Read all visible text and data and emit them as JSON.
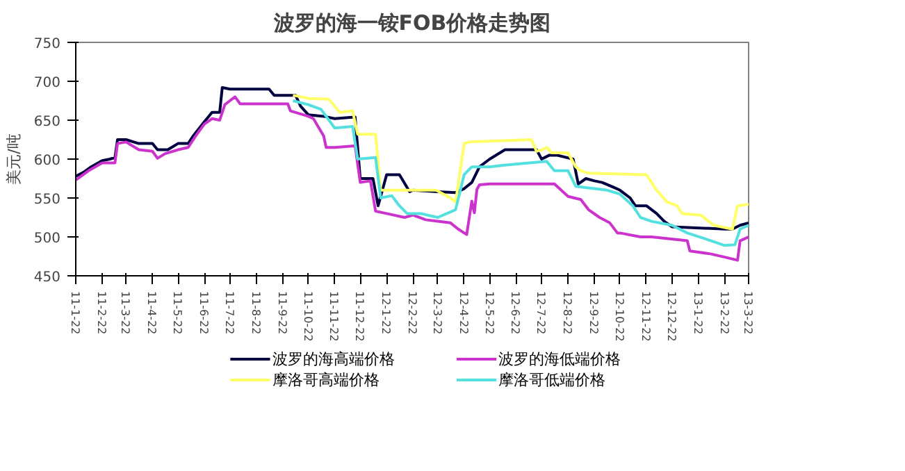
{
  "chart_data": {
    "type": "line",
    "title": "波罗的海一铵FOB价格走势图",
    "ylabel": "美元/吨",
    "xlim": [
      "2011-01-22",
      "2013-03-22"
    ],
    "ylim": [
      450,
      750
    ],
    "yticks": [
      450,
      500,
      550,
      600,
      650,
      700,
      750
    ],
    "xticks": [
      {
        "value": "2011-01-22",
        "label": "11-1-22"
      },
      {
        "value": "2011-02-22",
        "label": "11-2-22"
      },
      {
        "value": "2011-03-22",
        "label": "11-3-22"
      },
      {
        "value": "2011-04-22",
        "label": "11-4-22"
      },
      {
        "value": "2011-05-22",
        "label": "11-5-22"
      },
      {
        "value": "2011-06-22",
        "label": "11-6-22"
      },
      {
        "value": "2011-07-22",
        "label": "11-7-22"
      },
      {
        "value": "2011-08-22",
        "label": "11-8-22"
      },
      {
        "value": "2011-09-22",
        "label": "11-9-22"
      },
      {
        "value": "2011-10-22",
        "label": "11-10-22"
      },
      {
        "value": "2011-11-22",
        "label": "11-11-22"
      },
      {
        "value": "2011-12-22",
        "label": "11-12-22"
      },
      {
        "value": "2012-01-22",
        "label": "12-1-22"
      },
      {
        "value": "2012-02-22",
        "label": "12-2-22"
      },
      {
        "value": "2012-03-22",
        "label": "12-3-22"
      },
      {
        "value": "2012-04-22",
        "label": "12-4-22"
      },
      {
        "value": "2012-05-22",
        "label": "12-5-22"
      },
      {
        "value": "2012-06-22",
        "label": "12-6-22"
      },
      {
        "value": "2012-07-22",
        "label": "12-7-22"
      },
      {
        "value": "2012-08-22",
        "label": "12-8-22"
      },
      {
        "value": "2012-09-22",
        "label": "12-9-22"
      },
      {
        "value": "2012-10-22",
        "label": "12-10-22"
      },
      {
        "value": "2012-11-22",
        "label": "12-11-22"
      },
      {
        "value": "2012-12-22",
        "label": "12-12-22"
      },
      {
        "value": "2013-01-22",
        "label": "13-1-22"
      },
      {
        "value": "2013-02-22",
        "label": "13-2-22"
      },
      {
        "value": "2013-03-22",
        "label": "13-3-22"
      }
    ],
    "grid": false,
    "legend": "bottom",
    "marker": "none",
    "line_style": "solid",
    "series": [
      {
        "name": "波罗的海高端价格",
        "color": "#000040",
        "x": [
          "2011-01-22",
          "2011-01-31",
          "2011-02-09",
          "2011-02-22",
          "2011-03-03",
          "2011-03-09",
          "2011-03-12",
          "2011-03-22",
          "2011-04-06",
          "2011-04-22",
          "2011-04-28",
          "2011-05-10",
          "2011-05-22",
          "2011-06-03",
          "2011-06-09",
          "2011-06-22",
          "2011-07-01",
          "2011-07-10",
          "2011-07-13",
          "2011-07-22",
          "2011-09-06",
          "2011-09-12",
          "2011-10-07",
          "2011-10-13",
          "2011-10-22",
          "2011-11-09",
          "2011-11-22",
          "2011-12-16",
          "2011-12-22",
          "2012-01-06",
          "2012-01-12",
          "2012-01-22",
          "2012-02-06",
          "2012-02-18",
          "2012-02-22",
          "2012-03-22",
          "2012-04-12",
          "2012-04-22",
          "2012-05-01",
          "2012-05-10",
          "2012-05-22",
          "2012-06-03",
          "2012-06-09",
          "2012-06-22",
          "2012-07-16",
          "2012-07-22",
          "2012-07-31",
          "2012-08-09",
          "2012-08-28",
          "2012-09-03",
          "2012-09-12",
          "2012-09-22",
          "2012-10-01",
          "2012-10-16",
          "2012-10-22",
          "2012-11-03",
          "2012-11-09",
          "2012-11-22",
          "2012-12-04",
          "2012-12-13",
          "2012-12-22",
          "2013-02-22",
          "2013-03-03",
          "2013-03-12",
          "2013-03-22"
        ],
        "values": [
          578,
          583,
          590,
          598,
          600,
          602,
          625,
          625,
          620,
          620,
          612,
          612,
          620,
          620,
          630,
          648,
          660,
          660,
          692,
          690,
          690,
          682,
          682,
          668,
          657,
          655,
          652,
          654,
          575,
          575,
          540,
          580,
          580,
          558,
          560,
          558,
          557,
          562,
          570,
          590,
          600,
          608,
          612,
          612,
          612,
          600,
          605,
          605,
          600,
          568,
          575,
          572,
          570,
          563,
          560,
          550,
          540,
          540,
          530,
          520,
          513,
          510,
          510,
          515,
          518
        ]
      },
      {
        "name": "波罗的海低端价格",
        "color": "#cc33cc",
        "x": [
          "2011-01-22",
          "2011-02-06",
          "2011-02-22",
          "2011-03-09",
          "2011-03-12",
          "2011-03-22",
          "2011-04-06",
          "2011-04-22",
          "2011-04-28",
          "2011-05-07",
          "2011-05-22",
          "2011-06-03",
          "2011-06-12",
          "2011-06-22",
          "2011-07-01",
          "2011-07-10",
          "2011-07-16",
          "2011-07-22",
          "2011-07-28",
          "2011-08-03",
          "2011-09-28",
          "2011-10-01",
          "2011-10-22",
          "2011-10-28",
          "2011-11-09",
          "2011-11-12",
          "2011-11-22",
          "2011-12-16",
          "2011-12-22",
          "2012-01-03",
          "2012-01-09",
          "2012-01-22",
          "2012-02-12",
          "2012-02-22",
          "2012-03-08",
          "2012-03-22",
          "2012-04-06",
          "2012-04-15",
          "2012-04-25",
          "2012-05-01",
          "2012-05-04",
          "2012-05-07",
          "2012-05-10",
          "2012-05-22",
          "2012-08-06",
          "2012-08-12",
          "2012-08-22",
          "2012-09-06",
          "2012-09-15",
          "2012-09-28",
          "2012-10-10",
          "2012-10-19",
          "2012-10-22",
          "2012-11-15",
          "2012-11-28",
          "2013-01-09",
          "2013-01-12",
          "2013-02-06",
          "2013-02-22",
          "2013-03-09",
          "2013-03-12",
          "2013-03-22"
        ],
        "values": [
          573,
          585,
          595,
          595,
          620,
          622,
          612,
          610,
          601,
          607,
          612,
          615,
          630,
          645,
          652,
          650,
          670,
          675,
          680,
          671,
          671,
          662,
          655,
          652,
          630,
          615,
          615,
          617,
          570,
          572,
          533,
          530,
          525,
          528,
          522,
          520,
          518,
          510,
          503,
          546,
          531,
          561,
          567,
          568,
          568,
          562,
          552,
          548,
          535,
          525,
          518,
          505,
          505,
          500,
          500,
          495,
          482,
          478,
          474,
          470,
          495,
          500
        ]
      },
      {
        "name": "摩洛哥高端价格",
        "color": "#ffff66",
        "x": [
          "2011-10-04",
          "2011-10-22",
          "2011-11-15",
          "2011-11-28",
          "2011-12-13",
          "2011-12-19",
          "2012-01-09",
          "2012-01-15",
          "2012-03-20",
          "2012-04-06",
          "2012-04-12",
          "2012-04-22",
          "2012-04-28",
          "2012-07-10",
          "2012-07-16",
          "2012-07-22",
          "2012-07-28",
          "2012-08-03",
          "2012-08-22",
          "2012-08-31",
          "2012-09-06",
          "2012-09-15",
          "2012-11-22",
          "2012-12-04",
          "2012-12-16",
          "2012-12-28",
          "2013-01-03",
          "2013-01-25",
          "2013-02-09",
          "2013-03-03",
          "2013-03-09",
          "2013-03-22"
        ],
        "values": [
          682,
          678,
          677,
          660,
          662,
          632,
          632,
          560,
          560,
          550,
          545,
          620,
          622,
          625,
          610,
          612,
          615,
          608,
          608,
          590,
          585,
          582,
          580,
          560,
          545,
          540,
          530,
          528,
          515,
          510,
          540,
          542
        ]
      },
      {
        "name": "摩洛哥低端价格",
        "color": "#55e0e0",
        "x": [
          "2011-10-04",
          "2011-10-22",
          "2011-11-06",
          "2011-11-22",
          "2011-12-13",
          "2011-12-19",
          "2012-01-09",
          "2012-01-15",
          "2012-01-28",
          "2012-02-06",
          "2012-02-15",
          "2012-03-02",
          "2012-03-22",
          "2012-04-12",
          "2012-04-22",
          "2012-05-01",
          "2012-05-22",
          "2012-06-06",
          "2012-07-28",
          "2012-08-06",
          "2012-08-22",
          "2012-08-31",
          "2012-09-22",
          "2012-10-07",
          "2012-10-22",
          "2012-11-06",
          "2012-11-15",
          "2012-11-28",
          "2012-12-22",
          "2013-01-09",
          "2013-02-06",
          "2013-02-22",
          "2013-03-06",
          "2013-03-12",
          "2013-03-22"
        ],
        "values": [
          675,
          670,
          664,
          640,
          642,
          600,
          602,
          550,
          553,
          540,
          530,
          530,
          525,
          535,
          580,
          590,
          590,
          592,
          597,
          585,
          585,
          565,
          562,
          560,
          555,
          540,
          525,
          520,
          515,
          505,
          495,
          489,
          490,
          510,
          515
        ]
      }
    ]
  }
}
